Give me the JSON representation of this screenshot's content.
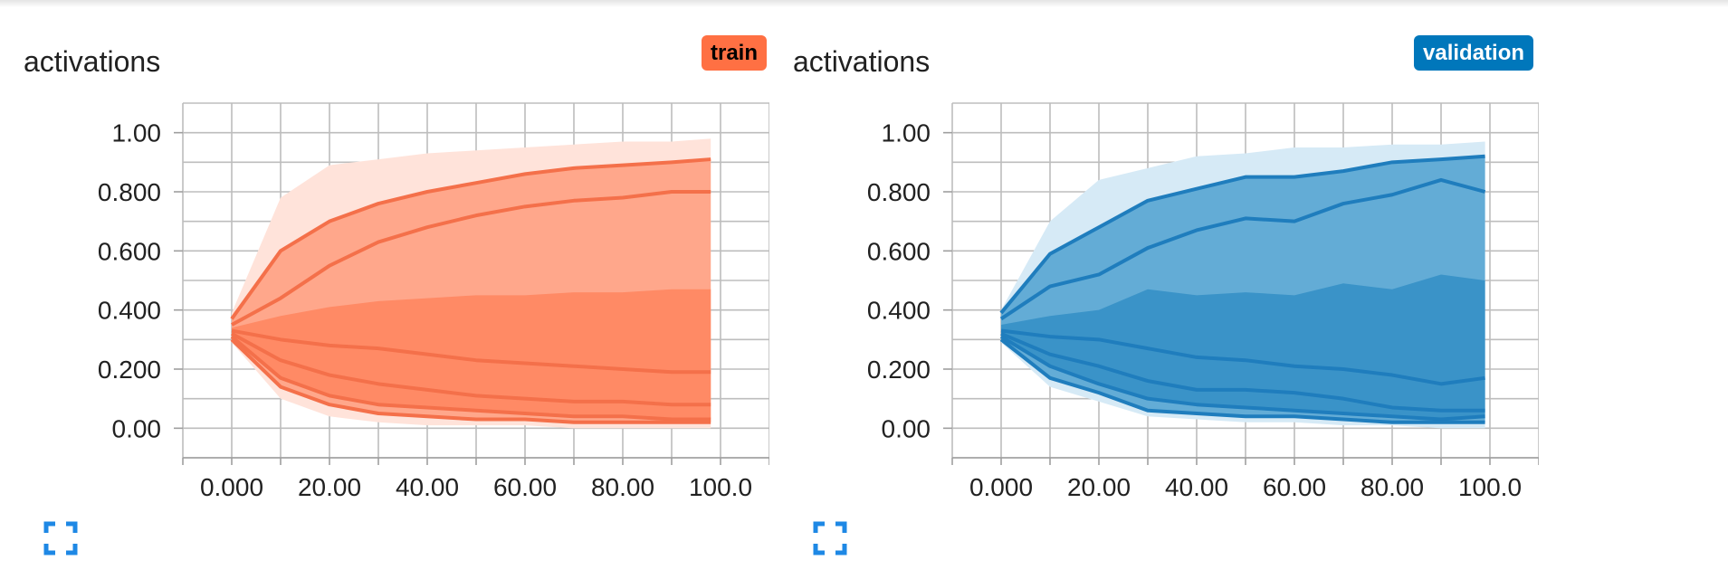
{
  "charts": [
    {
      "title": "activations",
      "run": "train",
      "run_color": "#ff7043",
      "band_colors": [
        "#ffe3da",
        "#ffa78b",
        "#ff8a65"
      ],
      "line_color": "#f4704a",
      "expand_icon": "fullscreen-icon"
    },
    {
      "title": "activations",
      "run": "validation",
      "run_color": "#0077bb",
      "band_colors": [
        "#d6eaf6",
        "#63acd6",
        "#3a93c8"
      ],
      "line_color": "#1f7dbd",
      "expand_icon": "fullscreen-icon"
    }
  ],
  "chart_data": [
    {
      "type": "area",
      "title": "activations",
      "run": "train",
      "x_ticks": [
        "0.000",
        "20.00",
        "40.00",
        "60.00",
        "80.00",
        "100.0"
      ],
      "y_ticks": [
        "0.00",
        "0.200",
        "0.400",
        "0.600",
        "0.800",
        "1.00"
      ],
      "xlim": [
        -10,
        110
      ],
      "ylim": [
        -0.1,
        1.1
      ],
      "x": [
        0,
        10,
        20,
        30,
        40,
        50,
        60,
        70,
        80,
        90,
        98
      ],
      "percentiles": {
        "max": [
          0.39,
          0.78,
          0.89,
          0.91,
          0.93,
          0.94,
          0.95,
          0.96,
          0.97,
          0.97,
          0.98
        ],
        "p93": [
          0.37,
          0.6,
          0.7,
          0.76,
          0.8,
          0.83,
          0.86,
          0.88,
          0.89,
          0.9,
          0.91
        ],
        "p84": [
          0.35,
          0.44,
          0.55,
          0.63,
          0.68,
          0.72,
          0.75,
          0.77,
          0.78,
          0.8,
          0.8
        ],
        "p69": [
          0.34,
          0.38,
          0.41,
          0.43,
          0.44,
          0.45,
          0.45,
          0.46,
          0.46,
          0.47,
          0.47
        ],
        "p50": [
          0.33,
          0.3,
          0.28,
          0.27,
          0.25,
          0.23,
          0.22,
          0.21,
          0.2,
          0.19,
          0.19
        ],
        "p31": [
          0.32,
          0.23,
          0.18,
          0.15,
          0.13,
          0.11,
          0.1,
          0.09,
          0.09,
          0.08,
          0.08
        ],
        "p16": [
          0.31,
          0.17,
          0.11,
          0.08,
          0.07,
          0.06,
          0.05,
          0.04,
          0.04,
          0.03,
          0.03
        ],
        "p7": [
          0.3,
          0.14,
          0.08,
          0.05,
          0.04,
          0.03,
          0.03,
          0.02,
          0.02,
          0.02,
          0.02
        ],
        "min": [
          0.29,
          0.1,
          0.04,
          0.02,
          0.01,
          0.01,
          0.01,
          0.0,
          0.0,
          0.0,
          0.0
        ]
      }
    },
    {
      "type": "area",
      "title": "activations",
      "run": "validation",
      "x_ticks": [
        "0.000",
        "20.00",
        "40.00",
        "60.00",
        "80.00",
        "100.0"
      ],
      "y_ticks": [
        "0.00",
        "0.200",
        "0.400",
        "0.600",
        "0.800",
        "1.00"
      ],
      "xlim": [
        -10,
        110
      ],
      "ylim": [
        -0.1,
        1.1
      ],
      "x": [
        0,
        10,
        20,
        30,
        40,
        50,
        60,
        70,
        80,
        90,
        99
      ],
      "percentiles": {
        "max": [
          0.4,
          0.7,
          0.84,
          0.88,
          0.92,
          0.93,
          0.95,
          0.95,
          0.96,
          0.96,
          0.97
        ],
        "p93": [
          0.39,
          0.59,
          0.68,
          0.77,
          0.81,
          0.85,
          0.85,
          0.87,
          0.9,
          0.91,
          0.92
        ],
        "p84": [
          0.37,
          0.48,
          0.52,
          0.61,
          0.67,
          0.71,
          0.7,
          0.76,
          0.79,
          0.84,
          0.8
        ],
        "p69": [
          0.35,
          0.38,
          0.4,
          0.47,
          0.45,
          0.46,
          0.45,
          0.49,
          0.47,
          0.52,
          0.5
        ],
        "p50": [
          0.33,
          0.31,
          0.3,
          0.27,
          0.24,
          0.23,
          0.21,
          0.2,
          0.18,
          0.15,
          0.17
        ],
        "p31": [
          0.32,
          0.25,
          0.21,
          0.16,
          0.13,
          0.13,
          0.12,
          0.1,
          0.07,
          0.06,
          0.06
        ],
        "p16": [
          0.31,
          0.21,
          0.15,
          0.1,
          0.08,
          0.07,
          0.06,
          0.05,
          0.04,
          0.03,
          0.04
        ],
        "p7": [
          0.3,
          0.17,
          0.12,
          0.06,
          0.05,
          0.04,
          0.04,
          0.03,
          0.02,
          0.02,
          0.02
        ],
        "min": [
          0.29,
          0.14,
          0.09,
          0.04,
          0.03,
          0.02,
          0.02,
          0.01,
          0.01,
          0.0,
          0.0
        ]
      }
    }
  ]
}
